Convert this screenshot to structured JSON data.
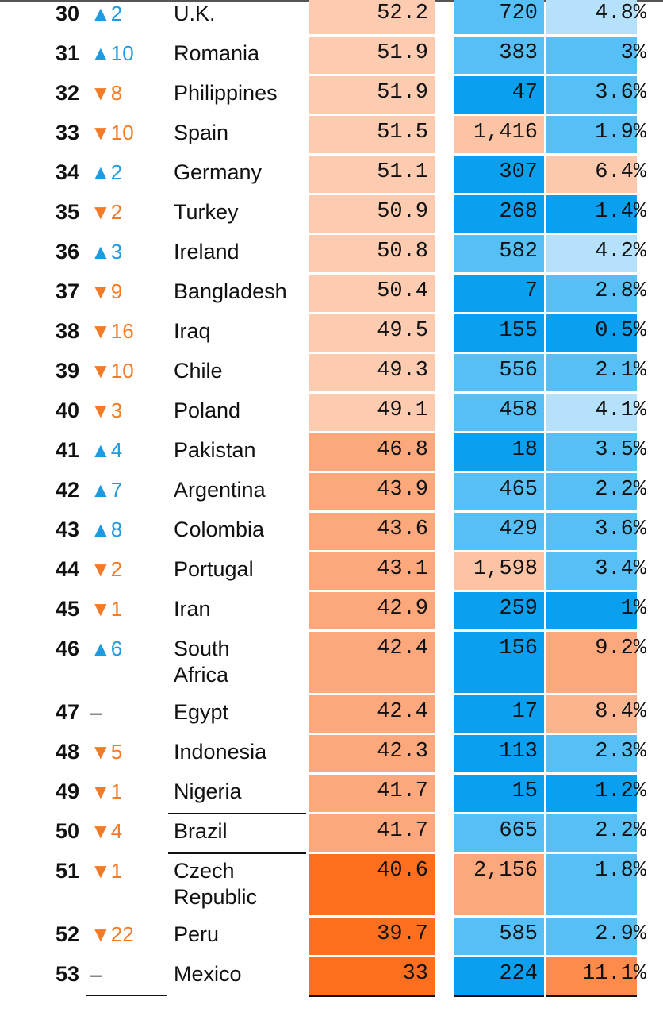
{
  "table": {
    "rows": [
      {
        "rank": "30",
        "change": "▲2",
        "country": "U.K.",
        "score": "52.2",
        "col2": "720",
        "col3": "4.8%",
        "colors": [
          "#fccbb0",
          "#56c0f6",
          "#b6e1fa"
        ]
      },
      {
        "rank": "31",
        "change": "▲10",
        "country": "Romania",
        "score": "51.9",
        "col2": "383",
        "col3": "3%",
        "colors": [
          "#fccbb0",
          "#56c0f6",
          "#56c0f6"
        ]
      },
      {
        "rank": "32",
        "change": "▼8",
        "country": "Philippines",
        "score": "51.9",
        "col2": "47",
        "col3": "3.6%",
        "colors": [
          "#fccbb0",
          "#0ba0ef",
          "#56c0f6"
        ]
      },
      {
        "rank": "33",
        "change": "▼10",
        "country": "Spain",
        "score": "51.5",
        "col2": "1,416",
        "col3": "1.9%",
        "colors": [
          "#fccbb0",
          "#fcc4a4",
          "#56c0f6"
        ]
      },
      {
        "rank": "34",
        "change": "▲2",
        "country": "Germany",
        "score": "51.1",
        "col2": "307",
        "col3": "6.4%",
        "colors": [
          "#fccbb0",
          "#0ba0ef",
          "#fcc9ad"
        ]
      },
      {
        "rank": "35",
        "change": "▼2",
        "country": "Turkey",
        "score": "50.9",
        "col2": "268",
        "col3": "1.4%",
        "colors": [
          "#fccbb0",
          "#0ba0ef",
          "#0ba0ef"
        ]
      },
      {
        "rank": "36",
        "change": "▲3",
        "country": "Ireland",
        "score": "50.8",
        "col2": "582",
        "col3": "4.2%",
        "colors": [
          "#fccbb0",
          "#56c0f6",
          "#b6e1fa"
        ]
      },
      {
        "rank": "37",
        "change": "▼9",
        "country": "Bangladesh",
        "score": "50.4",
        "col2": "7",
        "col3": "2.8%",
        "colors": [
          "#fccbb0",
          "#0ba0ef",
          "#56c0f6"
        ]
      },
      {
        "rank": "38",
        "change": "▼16",
        "country": "Iraq",
        "score": "49.5",
        "col2": "155",
        "col3": "0.5%",
        "colors": [
          "#fccbb0",
          "#0ba0ef",
          "#0ba0ef"
        ]
      },
      {
        "rank": "39",
        "change": "▼10",
        "country": "Chile",
        "score": "49.3",
        "col2": "556",
        "col3": "2.1%",
        "colors": [
          "#fccbb0",
          "#56c0f6",
          "#56c0f6"
        ]
      },
      {
        "rank": "40",
        "change": "▼3",
        "country": "Poland",
        "score": "49.1",
        "col2": "458",
        "col3": "4.1%",
        "colors": [
          "#fccbb0",
          "#56c0f6",
          "#b6e1fa"
        ]
      },
      {
        "rank": "41",
        "change": "▲4",
        "country": "Pakistan",
        "score": "46.8",
        "col2": "18",
        "col3": "3.5%",
        "colors": [
          "#fca77c",
          "#0ba0ef",
          "#56c0f6"
        ]
      },
      {
        "rank": "42",
        "change": "▲7",
        "country": "Argentina",
        "score": "43.9",
        "col2": "465",
        "col3": "2.2%",
        "colors": [
          "#fca77c",
          "#56c0f6",
          "#56c0f6"
        ]
      },
      {
        "rank": "43",
        "change": "▲8",
        "country": "Colombia",
        "score": "43.6",
        "col2": "429",
        "col3": "3.6%",
        "colors": [
          "#fca77c",
          "#56c0f6",
          "#56c0f6"
        ]
      },
      {
        "rank": "44",
        "change": "▼2",
        "country": "Portugal",
        "score": "43.1",
        "col2": "1,598",
        "col3": "3.4%",
        "colors": [
          "#fca77c",
          "#fcc4a4",
          "#56c0f6"
        ]
      },
      {
        "rank": "45",
        "change": "▼1",
        "country": "Iran",
        "score": "42.9",
        "col2": "259",
        "col3": "1%",
        "colors": [
          "#fca77c",
          "#0ba0ef",
          "#0ba0ef"
        ]
      },
      {
        "rank": "46",
        "change": "▲6",
        "country": "South\nAfrica",
        "score": "42.4",
        "col2": "156",
        "col3": "9.2%",
        "colors": [
          "#fca77c",
          "#0ba0ef",
          "#fca77c"
        ]
      },
      {
        "rank": "47",
        "change": "–",
        "country": "Egypt",
        "score": "42.4",
        "col2": "17",
        "col3": "8.4%",
        "colors": [
          "#fca77c",
          "#0ba0ef",
          "#fcb48e"
        ]
      },
      {
        "rank": "48",
        "change": "▼5",
        "country": "Indonesia",
        "score": "42.3",
        "col2": "113",
        "col3": "2.3%",
        "colors": [
          "#fca77c",
          "#0ba0ef",
          "#56c0f6"
        ]
      },
      {
        "rank": "49",
        "change": "▼1",
        "country": "Nigeria",
        "score": "41.7",
        "col2": "15",
        "col3": "1.2%",
        "colors": [
          "#fca77c",
          "#0ba0ef",
          "#0ba0ef"
        ]
      },
      {
        "rank": "50",
        "change": "▼4",
        "country": "Brazil",
        "score": "41.7",
        "col2": "665",
        "col3": "2.2%",
        "colors": [
          "#fca77c",
          "#56c0f6",
          "#56c0f6"
        ]
      },
      {
        "rank": "51",
        "change": "▼1",
        "country": "Czech\nRepublic",
        "score": "40.6",
        "col2": "2,156",
        "col3": "1.8%",
        "colors": [
          "#fd6e1f",
          "#fca77c",
          "#56c0f6"
        ]
      },
      {
        "rank": "52",
        "change": "▼22",
        "country": "Peru",
        "score": "39.7",
        "col2": "585",
        "col3": "2.9%",
        "colors": [
          "#fd6e1f",
          "#56c0f6",
          "#56c0f6"
        ]
      },
      {
        "rank": "53",
        "change": "–",
        "country": "Mexico",
        "score": "33",
        "col2": "224",
        "col3": "11.1%",
        "colors": [
          "#fd6e1f",
          "#0ba0ef",
          "#fd8b4c"
        ]
      }
    ]
  }
}
